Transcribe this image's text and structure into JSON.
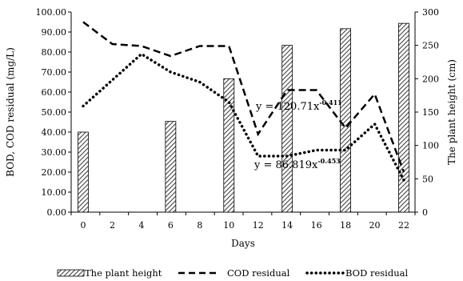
{
  "chart_data": {
    "type": "bar+line",
    "xlabel": "Days",
    "ylabel_left": "BOD, COD residual (mg/L)",
    "ylabel_right": "The plant height (cm)",
    "x_ticks": [
      0,
      2,
      4,
      6,
      8,
      10,
      12,
      14,
      16,
      18,
      20,
      22
    ],
    "left_ticks": [
      "0.00",
      "10.00",
      "20.00",
      "30.00",
      "40.00",
      "50.00",
      "60.00",
      "70.00",
      "80.00",
      "90.00",
      "100.00"
    ],
    "right_ticks": [
      "0",
      "50",
      "100",
      "150",
      "200",
      "250",
      "300"
    ],
    "ylim_left": [
      0,
      100
    ],
    "ylim_right": [
      0,
      300
    ],
    "grid": false,
    "legend_position": "bottom",
    "series": [
      {
        "name": "The plant height",
        "kind": "bar",
        "axis": "right",
        "color": "#555555",
        "x": [
          0,
          6,
          10,
          14,
          18,
          22
        ],
        "values": [
          120,
          136,
          200,
          250,
          275,
          283
        ]
      },
      {
        "name": "COD residual",
        "kind": "line",
        "axis": "left",
        "style": "dashed",
        "color": "#000000",
        "x": [
          0,
          2,
          4,
          6,
          8,
          10,
          12,
          14,
          16,
          18,
          20,
          22
        ],
        "values": [
          95,
          84,
          83,
          78,
          83,
          83,
          39,
          61,
          61,
          42,
          59,
          20
        ]
      },
      {
        "name": "BOD residual",
        "kind": "line",
        "axis": "left",
        "style": "dotted",
        "color": "#000000",
        "x": [
          0,
          2,
          4,
          6,
          8,
          10,
          12,
          14,
          16,
          18,
          20,
          22
        ],
        "values": [
          53,
          66,
          79,
          70,
          65,
          55,
          28,
          28,
          31,
          31,
          44,
          16
        ]
      }
    ],
    "annotations": [
      {
        "base": "y = 120.71x",
        "exp": "-0.411",
        "anchor_series": "COD residual"
      },
      {
        "base": "y = 86.819x",
        "exp": "-0.453",
        "anchor_series": "BOD residual"
      }
    ]
  }
}
